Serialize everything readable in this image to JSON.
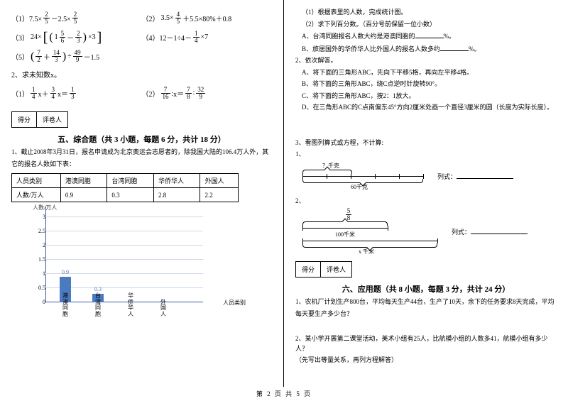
{
  "footer": "第 2 页 共 5 页",
  "left": {
    "eq1_prefix": "（1）7.5×",
    "eq1_mid": "－2.5×",
    "f25_n": "2",
    "f25_d": "5",
    "eq2_prefix": "（2）",
    "eq2_a": "3.5×",
    "eq2_b": "＋5.5×80%＋0.8",
    "f45_n": "4",
    "f45_d": "5",
    "eq3_prefix": "（3）",
    "eq3_a": "24×",
    "eq3_inner_a": "1",
    "f56_n": "5",
    "f56_d": "6",
    "eq3_minus": "－",
    "f23_n": "2",
    "f23_d": "3",
    "eq3_times3": "×3",
    "eq4": "（4）12－1÷4－",
    "f14_n": "1",
    "f14_d": "4",
    "eq4_b": "×7",
    "eq5_prefix": "（5）",
    "f72_n": "7",
    "f72_d": "2",
    "eq5_plus": "＋",
    "f143_n": "14",
    "f143_d": "3",
    "eq5_div": "÷",
    "f499_n": "49",
    "f499_d": "9",
    "eq5_tail": "－1.5",
    "q2_title": "2、求未知数x。",
    "q2_1_prefix": "（1）",
    "q2_1_eq": "x＋",
    "f34_n": "3",
    "f34_d": "4",
    "q2_1_mid": "x＝",
    "f13_n": "1",
    "f13_d": "3",
    "q2_2_prefix": "（2）",
    "f716_n": "7",
    "f716_d": "16",
    "q2_2_mid": "∶x＝",
    "f78_n": "7",
    "f78_d": "8",
    "q2_2_colon": "∶",
    "f329_n": "32",
    "f329_d": "9",
    "score_a": "得分",
    "score_b": "评卷人",
    "section5": "五、综合题（共 3 小题，每题 6 分，共计 18 分）",
    "p5_1a": "1、截止2008年3月31日，报名申请成为北京奥运会志愿者的，除我国大陆的106.4万人外，其",
    "p5_1b": "它的报名人数如下表：",
    "table": {
      "h1": "人员类别",
      "h2": "港澳同胞",
      "h3": "台湾同胞",
      "h4": "华侨华人",
      "h5": "外国人",
      "r1": "人数/万人",
      "v1": "0.9",
      "v2": "0.3",
      "v3": "2.8",
      "v4": "2.2"
    },
    "chart": {
      "ylabel": "人数/万人",
      "xlabel": "人员类别",
      "ticks": [
        "0",
        "0.5",
        "1",
        "1.5",
        "2",
        "2.5",
        "3"
      ],
      "bars": [
        {
          "label": "0.9",
          "cat": "港澳同胞"
        },
        {
          "label": "0.3",
          "cat": "台湾同胞"
        },
        {
          "label": "",
          "cat": "华侨华人"
        },
        {
          "label": "",
          "cat": "外国人"
        }
      ]
    }
  },
  "right": {
    "r1": "（1）根据表里的人数，完成统计图。",
    "r2": "（2）求下列百分数。（百分号前保留一位小数）",
    "r3a": "A、台湾同胞报名人数大约是港澳同胞的",
    "r3b": "%。",
    "r4a": "B、旅居国外的华侨华人比外国人的报名人数多约",
    "r4b": "%。",
    "q2_title": "2、依次解答。",
    "q2a": "A、将下面的三角形ABC，先向下平移5格，再向左平移4格。",
    "q2b": "B、将下面的三角形ABC，绕C点逆时针旋转90°。",
    "q2c": "C、将下面的三角形ABC，按2：1放大。",
    "q2d": "D、在三角形ABC的C点南偏东45°方向2厘米处画一个直径3厘米的圆（长度为实际长度）。",
    "q3_title": "3、看图列算式或方程，不计算:",
    "q3_1": "1、",
    "d1_top": "？千克",
    "d1_bottom": "60千克",
    "d1_label": "列式：",
    "q3_2": "2、",
    "f58_n": "5",
    "f58_d": "8",
    "d2_mid": "100千米",
    "d2_bottom": "x 千米",
    "d2_label": "列式：",
    "section6": "六、应用题（共 8 小题，每题 3 分，共计 24 分）",
    "p6_1a": "1、农机厂计划生产800台，平均每天生产44台，生产了10天，余下的任务要求8天完成，平均",
    "p6_1b": "每天要生产多少台？",
    "p6_2a": "2、某小学开展第二课堂活动，美术小组有25人，比航模小组的人数多41，航模小组有多少人？",
    "p6_2b": "（先写出等量关系，再列方程解答）"
  }
}
